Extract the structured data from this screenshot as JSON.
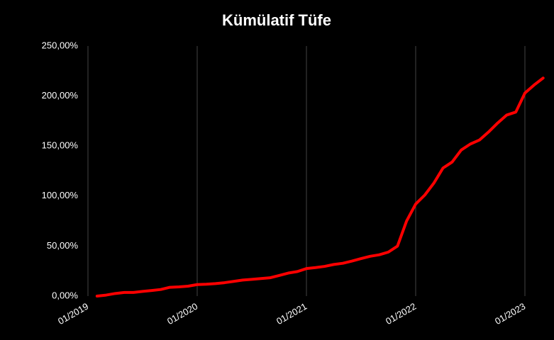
{
  "chart_data": {
    "type": "line",
    "title": "Kümülatif Tüfe",
    "x": [
      "01/2019",
      "02/2019",
      "03/2019",
      "04/2019",
      "05/2019",
      "06/2019",
      "07/2019",
      "08/2019",
      "09/2019",
      "10/2019",
      "11/2019",
      "12/2019",
      "01/2020",
      "02/2020",
      "03/2020",
      "04/2020",
      "05/2020",
      "06/2020",
      "07/2020",
      "08/2020",
      "09/2020",
      "10/2020",
      "11/2020",
      "12/2020",
      "01/2021",
      "02/2021",
      "03/2021",
      "04/2021",
      "05/2021",
      "06/2021",
      "07/2021",
      "08/2021",
      "09/2021",
      "10/2021",
      "11/2021",
      "12/2021",
      "01/2022",
      "02/2022",
      "03/2022",
      "04/2022",
      "05/2022",
      "06/2022",
      "07/2022",
      "08/2022",
      "09/2022",
      "10/2022",
      "11/2022",
      "12/2022",
      "01/2023",
      "02/2023",
      "03/2023"
    ],
    "series": [
      {
        "color": "#ff0000",
        "values": [
          null,
          0,
          1,
          2.6,
          3.6,
          3.6,
          4.7,
          5.6,
          6.6,
          8.8,
          9.2,
          9.9,
          11.5,
          11.9,
          12.5,
          13.4,
          14.7,
          16,
          16.7,
          17.5,
          18.3,
          20.6,
          23,
          24.5,
          27.5,
          28.5,
          29.7,
          31.6,
          32.8,
          35,
          37.5,
          39.8,
          41.3,
          44,
          50,
          75,
          92,
          101,
          113,
          128,
          134,
          146,
          152,
          156,
          164,
          173,
          181,
          184,
          203,
          211,
          218
        ]
      }
    ],
    "xticks": [
      "01/2019",
      "01/2020",
      "01/2021",
      "01/2022",
      "01/2023"
    ],
    "ylim": [
      0,
      250
    ],
    "yticks": [
      {
        "value": 0,
        "label": "0,00%"
      },
      {
        "value": 50,
        "label": "50,00%"
      },
      {
        "value": 100,
        "label": "100,00%"
      },
      {
        "value": 150,
        "label": "150,00%"
      },
      {
        "value": 200,
        "label": "200,00%"
      },
      {
        "value": 250,
        "label": "250,00%"
      }
    ],
    "grid": true
  }
}
